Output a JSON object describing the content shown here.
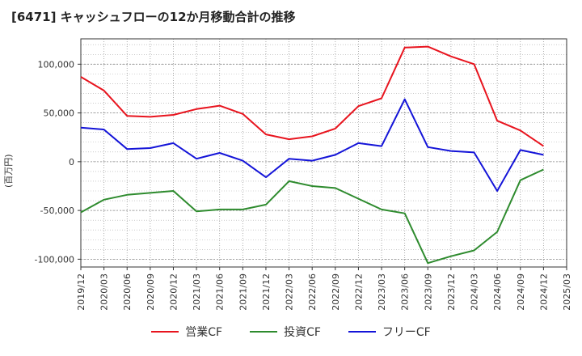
{
  "chart_data": {
    "type": "line",
    "title": "[6471]  キャッシュフローの12か月移動合計の推移",
    "ylabel": "(百万円)",
    "xlabel": "",
    "ylim": [
      -108000,
      126000
    ],
    "yticks": [
      100000,
      50000,
      0,
      -50000,
      -100000
    ],
    "ytick_labels": [
      "100,000",
      "50,000",
      "0",
      "-50,000",
      "-100,000"
    ],
    "categories": [
      "2019/12",
      "2020/03",
      "2020/06",
      "2020/09",
      "2020/12",
      "2021/03",
      "2021/06",
      "2021/09",
      "2021/12",
      "2022/03",
      "2022/06",
      "2022/09",
      "2022/12",
      "2023/03",
      "2023/06",
      "2023/09",
      "2023/12",
      "2024/03",
      "2024/06",
      "2024/09",
      "2024/12",
      "2025/03"
    ],
    "grid": true,
    "legend_position": "bottom",
    "series": [
      {
        "name": "営業CF",
        "color": "#e8141e",
        "values": [
          87000,
          73000,
          47000,
          46000,
          48000,
          54000,
          57500,
          49000,
          28000,
          23000,
          26000,
          34000,
          57000,
          65000,
          117000,
          118000,
          108000,
          100000,
          42000,
          32000,
          16000,
          null
        ]
      },
      {
        "name": "投資CF",
        "color": "#2e8b2e",
        "values": [
          -52000,
          -39000,
          -34000,
          -32000,
          -30000,
          -51000,
          -49000,
          -49000,
          -44000,
          -20000,
          -25000,
          -27000,
          -38000,
          -49000,
          -53000,
          -104000,
          -97000,
          -91000,
          -72000,
          -19000,
          -8000,
          null
        ]
      },
      {
        "name": "フリーCF",
        "color": "#1414d8",
        "values": [
          35000,
          33000,
          13000,
          14000,
          19000,
          3000,
          9000,
          1000,
          -16000,
          3000,
          1000,
          7000,
          19000,
          16000,
          64000,
          15000,
          11000,
          9500,
          -30000,
          12000,
          7000,
          null
        ]
      }
    ]
  }
}
